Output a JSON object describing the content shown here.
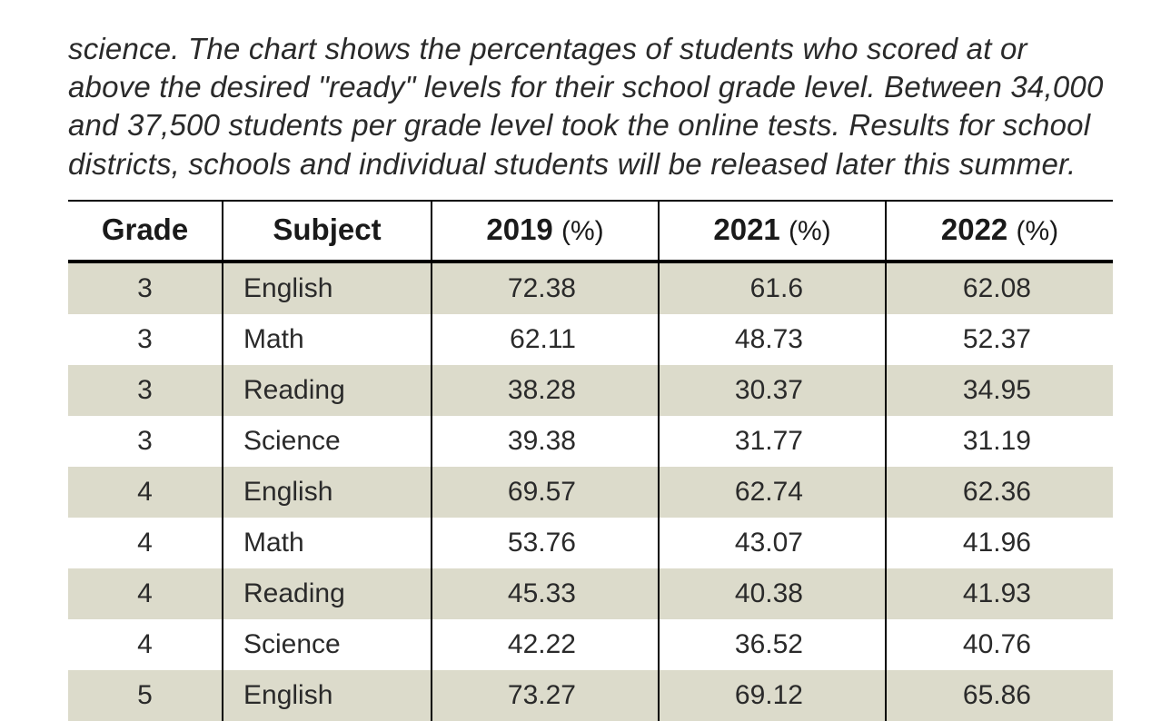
{
  "intro_text": "science. The chart shows the percentages of students who scored at or above the desired \"ready\" levels for their school grade level. Between 34,000 and 37,500 students per grade level took the online tests. Results for school districts, schools and individual students will be released later this summer.",
  "table": {
    "type": "table",
    "background_color": "#ffffff",
    "row_shade_color": "#dcdbcb",
    "border_color": "#000000",
    "text_color": "#2a2a2a",
    "header_fontsize": 33,
    "body_fontsize": 30,
    "columns": [
      {
        "key": "grade",
        "label": "Grade",
        "pct": false,
        "align": "center",
        "class": "grade"
      },
      {
        "key": "subject",
        "label": "Subject",
        "pct": false,
        "align": "left",
        "class": "subject"
      },
      {
        "key": "y2019",
        "label": "2019",
        "pct": true,
        "align": "right",
        "class": "num"
      },
      {
        "key": "y2021",
        "label": "2021",
        "pct": true,
        "align": "right",
        "class": "num"
      },
      {
        "key": "y2022",
        "label": "2022",
        "pct": true,
        "align": "right",
        "class": "num"
      }
    ],
    "pct_suffix": "(%)",
    "rows": [
      {
        "shaded": true,
        "grade": "3",
        "subject": "English",
        "y2019": "72.38",
        "y2021": "61.6",
        "y2022": "62.08"
      },
      {
        "shaded": false,
        "grade": "3",
        "subject": "Math",
        "y2019": "62.11",
        "y2021": "48.73",
        "y2022": "52.37"
      },
      {
        "shaded": true,
        "grade": "3",
        "subject": "Reading",
        "y2019": "38.28",
        "y2021": "30.37",
        "y2022": "34.95"
      },
      {
        "shaded": false,
        "grade": "3",
        "subject": "Science",
        "y2019": "39.38",
        "y2021": "31.77",
        "y2022": "31.19"
      },
      {
        "shaded": true,
        "grade": "4",
        "subject": "English",
        "y2019": "69.57",
        "y2021": "62.74",
        "y2022": "62.36"
      },
      {
        "shaded": false,
        "grade": "4",
        "subject": "Math",
        "y2019": "53.76",
        "y2021": "43.07",
        "y2022": "41.96"
      },
      {
        "shaded": true,
        "grade": "4",
        "subject": "Reading",
        "y2019": "45.33",
        "y2021": "40.38",
        "y2022": "41.93"
      },
      {
        "shaded": false,
        "grade": "4",
        "subject": "Science",
        "y2019": "42.22",
        "y2021": "36.52",
        "y2022": "40.76"
      },
      {
        "shaded": true,
        "grade": "5",
        "subject": "English",
        "y2019": "73.27",
        "y2021": "69.12",
        "y2022": "65.86"
      }
    ]
  }
}
